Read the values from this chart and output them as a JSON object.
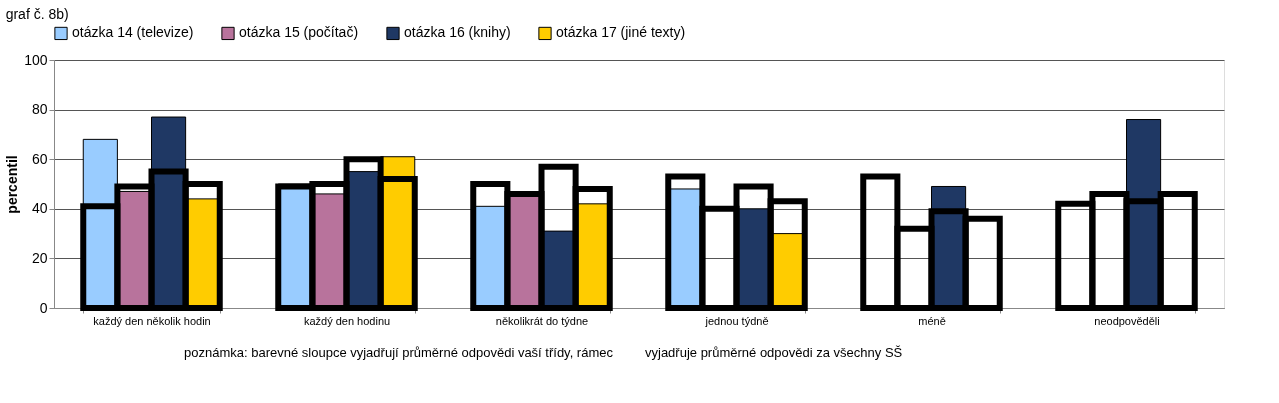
{
  "chart_data": {
    "type": "bar",
    "title": "graf č. 8b)",
    "ylabel": "percentil",
    "categories": [
      "každý den několik hodin",
      "každý den hodinu",
      "několikrát do týdne",
      "jednou týdně",
      "méně",
      "neodpověděli"
    ],
    "series": [
      {
        "name": "otázka 14 (televize)",
        "color": "#99ccff",
        "values": [
          68,
          50,
          41,
          48,
          null,
          null
        ]
      },
      {
        "name": "otázka 15 (počítač)",
        "color": "#b8739c",
        "values": [
          47,
          46,
          45,
          null,
          null,
          null
        ]
      },
      {
        "name": "otázka 16 (knihy)",
        "color": "#1f3864",
        "values": [
          77,
          55,
          31,
          40,
          49,
          76
        ]
      },
      {
        "name": "otázka 17 (jiné texty)",
        "color": "#ffcc00",
        "values": [
          44,
          61,
          42,
          30,
          null,
          null
        ]
      },
      {
        "color": "#000000",
        "values": [
          41,
          49,
          50,
          53,
          53,
          42
        ]
      },
      {
        "color": "#000000",
        "values": [
          49,
          50,
          46,
          40,
          32,
          46
        ]
      },
      {
        "color": "#000000",
        "values": [
          55,
          60,
          57,
          49,
          39,
          43
        ]
      },
      {
        "color": "#000000",
        "values": [
          50,
          52,
          48,
          43,
          36,
          46
        ]
      }
    ],
    "ylim": [
      0,
      100
    ],
    "yticks": [
      0,
      20,
      40,
      60,
      80,
      100
    ],
    "grid": "y",
    "legend": "top",
    "annotations": [
      "poznámka: barevné sloupce vyjadřují průměrné odpovědi vaší třídy, rámec",
      "vyjadřuje průměrné odpovědi za všechny SŠ"
    ]
  }
}
